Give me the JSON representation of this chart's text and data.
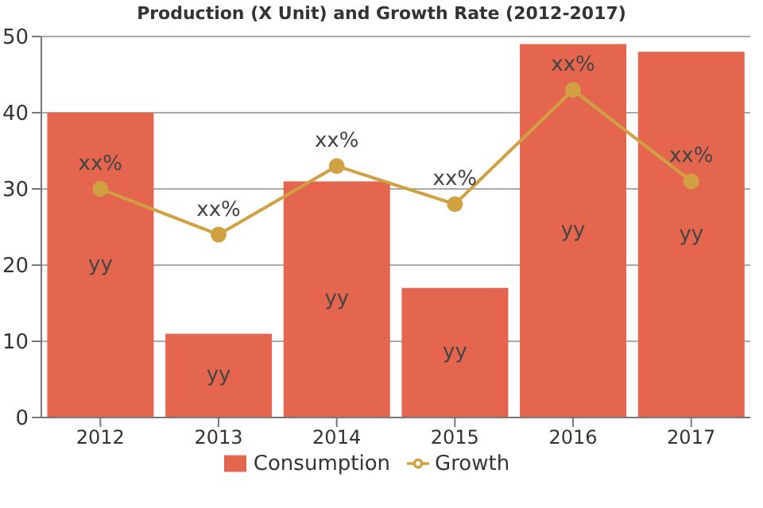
{
  "chart_data": {
    "type": "bar",
    "title": "Production (X Unit) and Growth Rate (2012-2017)",
    "categories": [
      "2012",
      "2013",
      "2014",
      "2015",
      "2016",
      "2017"
    ],
    "series": [
      {
        "name": "Consumption",
        "color": "#e5664e",
        "values": [
          40,
          11,
          31,
          17,
          49,
          48
        ],
        "value_labels": [
          "yy",
          "yy",
          "yy",
          "yy",
          "yy",
          "yy"
        ]
      },
      {
        "name": "Growth",
        "type": "line",
        "color": "#d1a042",
        "values": [
          30,
          24,
          33,
          28,
          43,
          31
        ],
        "value_labels": [
          "xx%",
          "xx%",
          "xx%",
          "xx%",
          "xx%",
          "xx%"
        ]
      }
    ],
    "ylim": [
      0,
      50
    ],
    "yticks": [
      0,
      10,
      20,
      30,
      40,
      50
    ],
    "grid": "y",
    "legend": "bottom",
    "marker": "circle"
  }
}
